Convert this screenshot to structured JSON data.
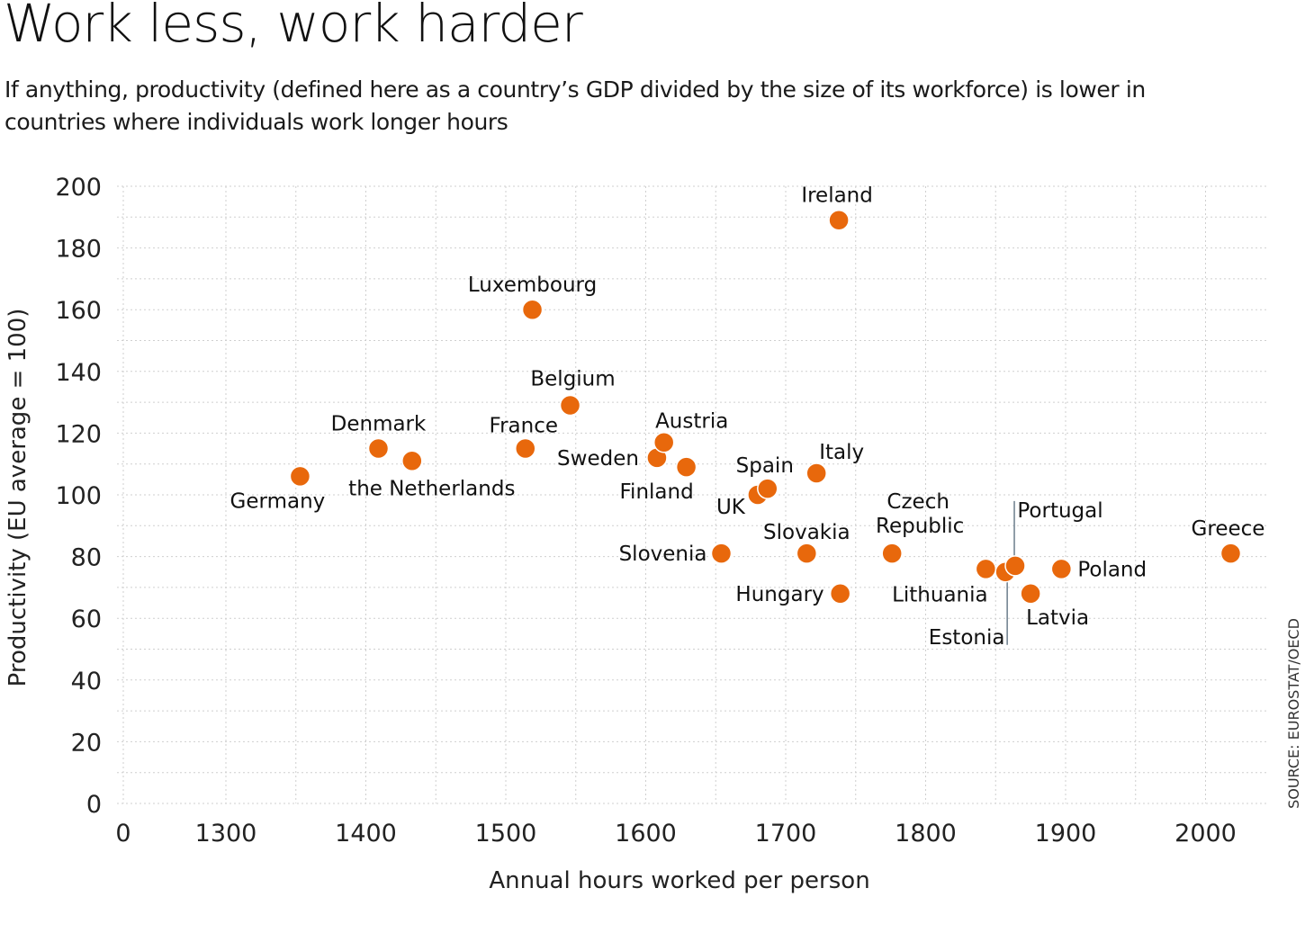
{
  "header": {
    "title": "Work less, work harder",
    "subtitle": "If anything, productivity (defined here as a country’s GDP divided by the size of its workforce) is lower in countries where individuals work longer hours"
  },
  "source": "SOURCE: EUROSTAT/OECD",
  "chart_data": {
    "type": "scatter",
    "title": "Work less, work harder",
    "xlabel": "Annual hours worked per person",
    "ylabel": "Productivity (EU average = 100)",
    "xlim": [
      1250,
      2050
    ],
    "ylim": [
      0,
      200
    ],
    "x_broken_axis_origin_label": "0",
    "x_ticks": [
      1300,
      1400,
      1500,
      1600,
      1700,
      1800,
      1900,
      2000
    ],
    "y_ticks": [
      0,
      20,
      40,
      60,
      80,
      100,
      120,
      140,
      160,
      180,
      200
    ],
    "grid": true,
    "point_color": "#e8680c",
    "points": [
      {
        "label": "Germany",
        "x": 1353,
        "y": 106,
        "label_pos": "below"
      },
      {
        "label": "Denmark",
        "x": 1409,
        "y": 115,
        "label_pos": "above"
      },
      {
        "label": "the Netherlands",
        "x": 1433,
        "y": 111,
        "label_pos": "below"
      },
      {
        "label": "France",
        "x": 1514,
        "y": 115,
        "label_pos": "above"
      },
      {
        "label": "Luxembourg",
        "x": 1519,
        "y": 160,
        "label_pos": "above"
      },
      {
        "label": "Belgium",
        "x": 1546,
        "y": 129,
        "label_pos": "above"
      },
      {
        "label": "Sweden",
        "x": 1608,
        "y": 112,
        "label_pos": "left"
      },
      {
        "label": "Austria",
        "x": 1613,
        "y": 117,
        "label_pos": "above-right"
      },
      {
        "label": "Finland",
        "x": 1629,
        "y": 109,
        "label_pos": "below-left"
      },
      {
        "label": "Slovenia",
        "x": 1654,
        "y": 81,
        "label_pos": "left"
      },
      {
        "label": "UK",
        "x": 1680,
        "y": 100,
        "label_pos": "below-left"
      },
      {
        "label": "Spain",
        "x": 1687,
        "y": 102,
        "label_pos": "above"
      },
      {
        "label": "Slovakia",
        "x": 1715,
        "y": 81,
        "label_pos": "above"
      },
      {
        "label": "Italy",
        "x": 1722,
        "y": 107,
        "label_pos": "above-right"
      },
      {
        "label": "Ireland",
        "x": 1738,
        "y": 189,
        "label_pos": "above"
      },
      {
        "label": "Hungary",
        "x": 1739,
        "y": 68,
        "label_pos": "left"
      },
      {
        "label": "Czech Republic",
        "x": 1776,
        "y": 81,
        "label_pos": "above"
      },
      {
        "label": "Lithuania",
        "x": 1843,
        "y": 76,
        "label_pos": "below-left"
      },
      {
        "label": "Estonia",
        "x": 1857,
        "y": 75,
        "label_pos": "leader-below"
      },
      {
        "label": "Portugal",
        "x": 1864,
        "y": 77,
        "label_pos": "leader-above"
      },
      {
        "label": "Latvia",
        "x": 1875,
        "y": 68,
        "label_pos": "below"
      },
      {
        "label": "Poland",
        "x": 1897,
        "y": 76,
        "label_pos": "right"
      },
      {
        "label": "Greece",
        "x": 2018,
        "y": 81,
        "label_pos": "above"
      }
    ]
  }
}
